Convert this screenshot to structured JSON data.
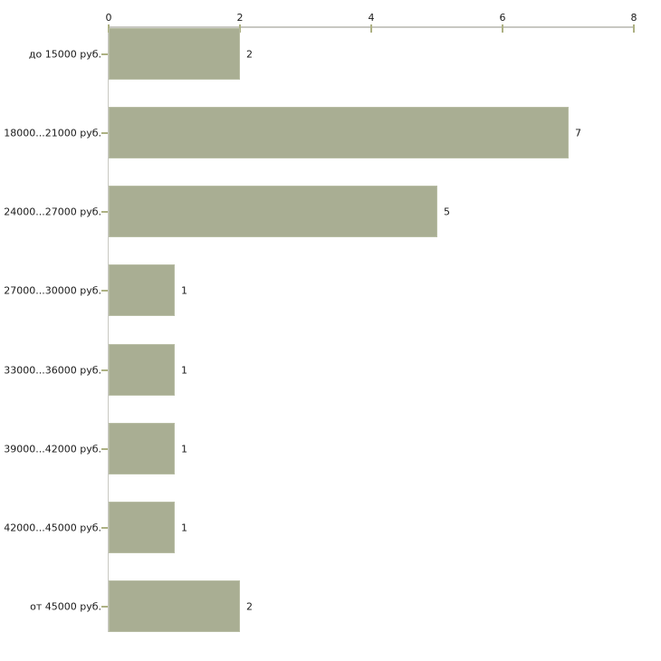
{
  "chart_data": {
    "type": "bar",
    "orientation": "horizontal",
    "title": "",
    "xlabel": "",
    "ylabel": "",
    "categories": [
      "до 15000 руб.",
      "18000...21000 руб.",
      "24000...27000 руб.",
      "27000...30000 руб.",
      "33000...36000 руб.",
      "39000...42000 руб.",
      "42000...45000 руб.",
      "от 45000 руб."
    ],
    "values": [
      2,
      7,
      5,
      1,
      1,
      1,
      1,
      2
    ],
    "value_axis_position": "top",
    "x_ticks": [
      0,
      2,
      4,
      6,
      8
    ],
    "xlim": [
      0,
      8
    ],
    "grid": false,
    "legend": false,
    "value_labels_shown": true,
    "colors": {
      "bar_fill": "#a9ae93",
      "bar_border": "#b8bda4",
      "axis_line": "#c8c8c2",
      "tick_mark": "#adb183",
      "text": "#1a1a1a",
      "background": "#ffffff"
    }
  }
}
